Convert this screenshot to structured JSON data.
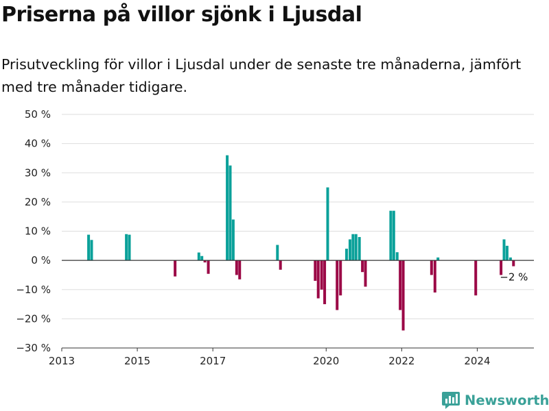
{
  "header": {
    "title": "Priserna på villor sjönk i Ljusdal",
    "subtitle": "Prisutveckling för villor i Ljusdal under de senaste tre månaderna, jämfört med tre månader tidigare."
  },
  "branding": {
    "name": "Newsworthy",
    "icon": "newsworthy-logo-icon",
    "color": "#3aa198"
  },
  "colors": {
    "positive": "#0ba19a",
    "negative": "#9b0846",
    "grid": "#dddddd",
    "zero_line": "#333333"
  },
  "chart_data": {
    "type": "bar",
    "title": "Priserna på villor sjönk i Ljusdal",
    "subtitle": "Prisutveckling för villor i Ljusdal under de senaste tre månaderna, jämfört med tre månader tidigare.",
    "xlabel": "",
    "ylabel": "",
    "ylim": [
      -30,
      50
    ],
    "xlim": [
      2013,
      2025.5
    ],
    "grid": true,
    "yticks": [
      {
        "value": 50,
        "label": "50 %"
      },
      {
        "value": 40,
        "label": "40 %"
      },
      {
        "value": 30,
        "label": "30 %"
      },
      {
        "value": 20,
        "label": "20 %"
      },
      {
        "value": 10,
        "label": "10 %"
      },
      {
        "value": 0,
        "label": "0 %"
      },
      {
        "value": -10,
        "label": "−10 %"
      },
      {
        "value": -20,
        "label": "−20 %"
      },
      {
        "value": -30,
        "label": "−30 %"
      }
    ],
    "xticks": [
      {
        "value": 2013,
        "label": "2013"
      },
      {
        "value": 2015,
        "label": "2015"
      },
      {
        "value": 2017,
        "label": "2017"
      },
      {
        "value": 2020,
        "label": "2020"
      },
      {
        "value": 2022,
        "label": "2022"
      },
      {
        "value": 2024,
        "label": "2024"
      }
    ],
    "series": [
      {
        "x": [
          2013.71,
          2013.79,
          2014.71,
          2014.79,
          2016.0,
          2016.63,
          2016.71,
          2016.79,
          2016.88,
          2017.38,
          2017.46,
          2017.54,
          2017.63,
          2017.71,
          2018.71,
          2018.79,
          2019.71,
          2019.79,
          2019.88,
          2019.96,
          2020.04,
          2020.29,
          2020.38,
          2020.54,
          2020.63,
          2020.71,
          2020.79,
          2020.88,
          2020.96,
          2021.04,
          2021.71,
          2021.79,
          2021.88,
          2021.96,
          2022.04,
          2022.79,
          2022.88,
          2022.96,
          2023.96,
          2024.63,
          2024.71,
          2024.79,
          2024.88,
          2024.96
        ],
        "values": [
          8.8,
          7.0,
          9.0,
          8.8,
          -5.5,
          2.7,
          1.5,
          -0.7,
          -4.6,
          36.0,
          32.5,
          14.0,
          -5.0,
          -6.5,
          5.3,
          -3.2,
          -7.0,
          -13.0,
          -10.0,
          -15.0,
          25.0,
          -17.0,
          -12.0,
          4.0,
          7.2,
          9.0,
          9.0,
          8.0,
          -4.0,
          -9.0,
          17.0,
          17.0,
          2.8,
          -17.0,
          -24.0,
          -5.0,
          -11.0,
          1.0,
          -12.0,
          -5.0,
          7.2,
          5.0,
          1.0,
          -2.0
        ]
      }
    ],
    "annotations": [
      {
        "x": 2024.96,
        "y": -2.0,
        "text": "−2 %"
      }
    ]
  }
}
